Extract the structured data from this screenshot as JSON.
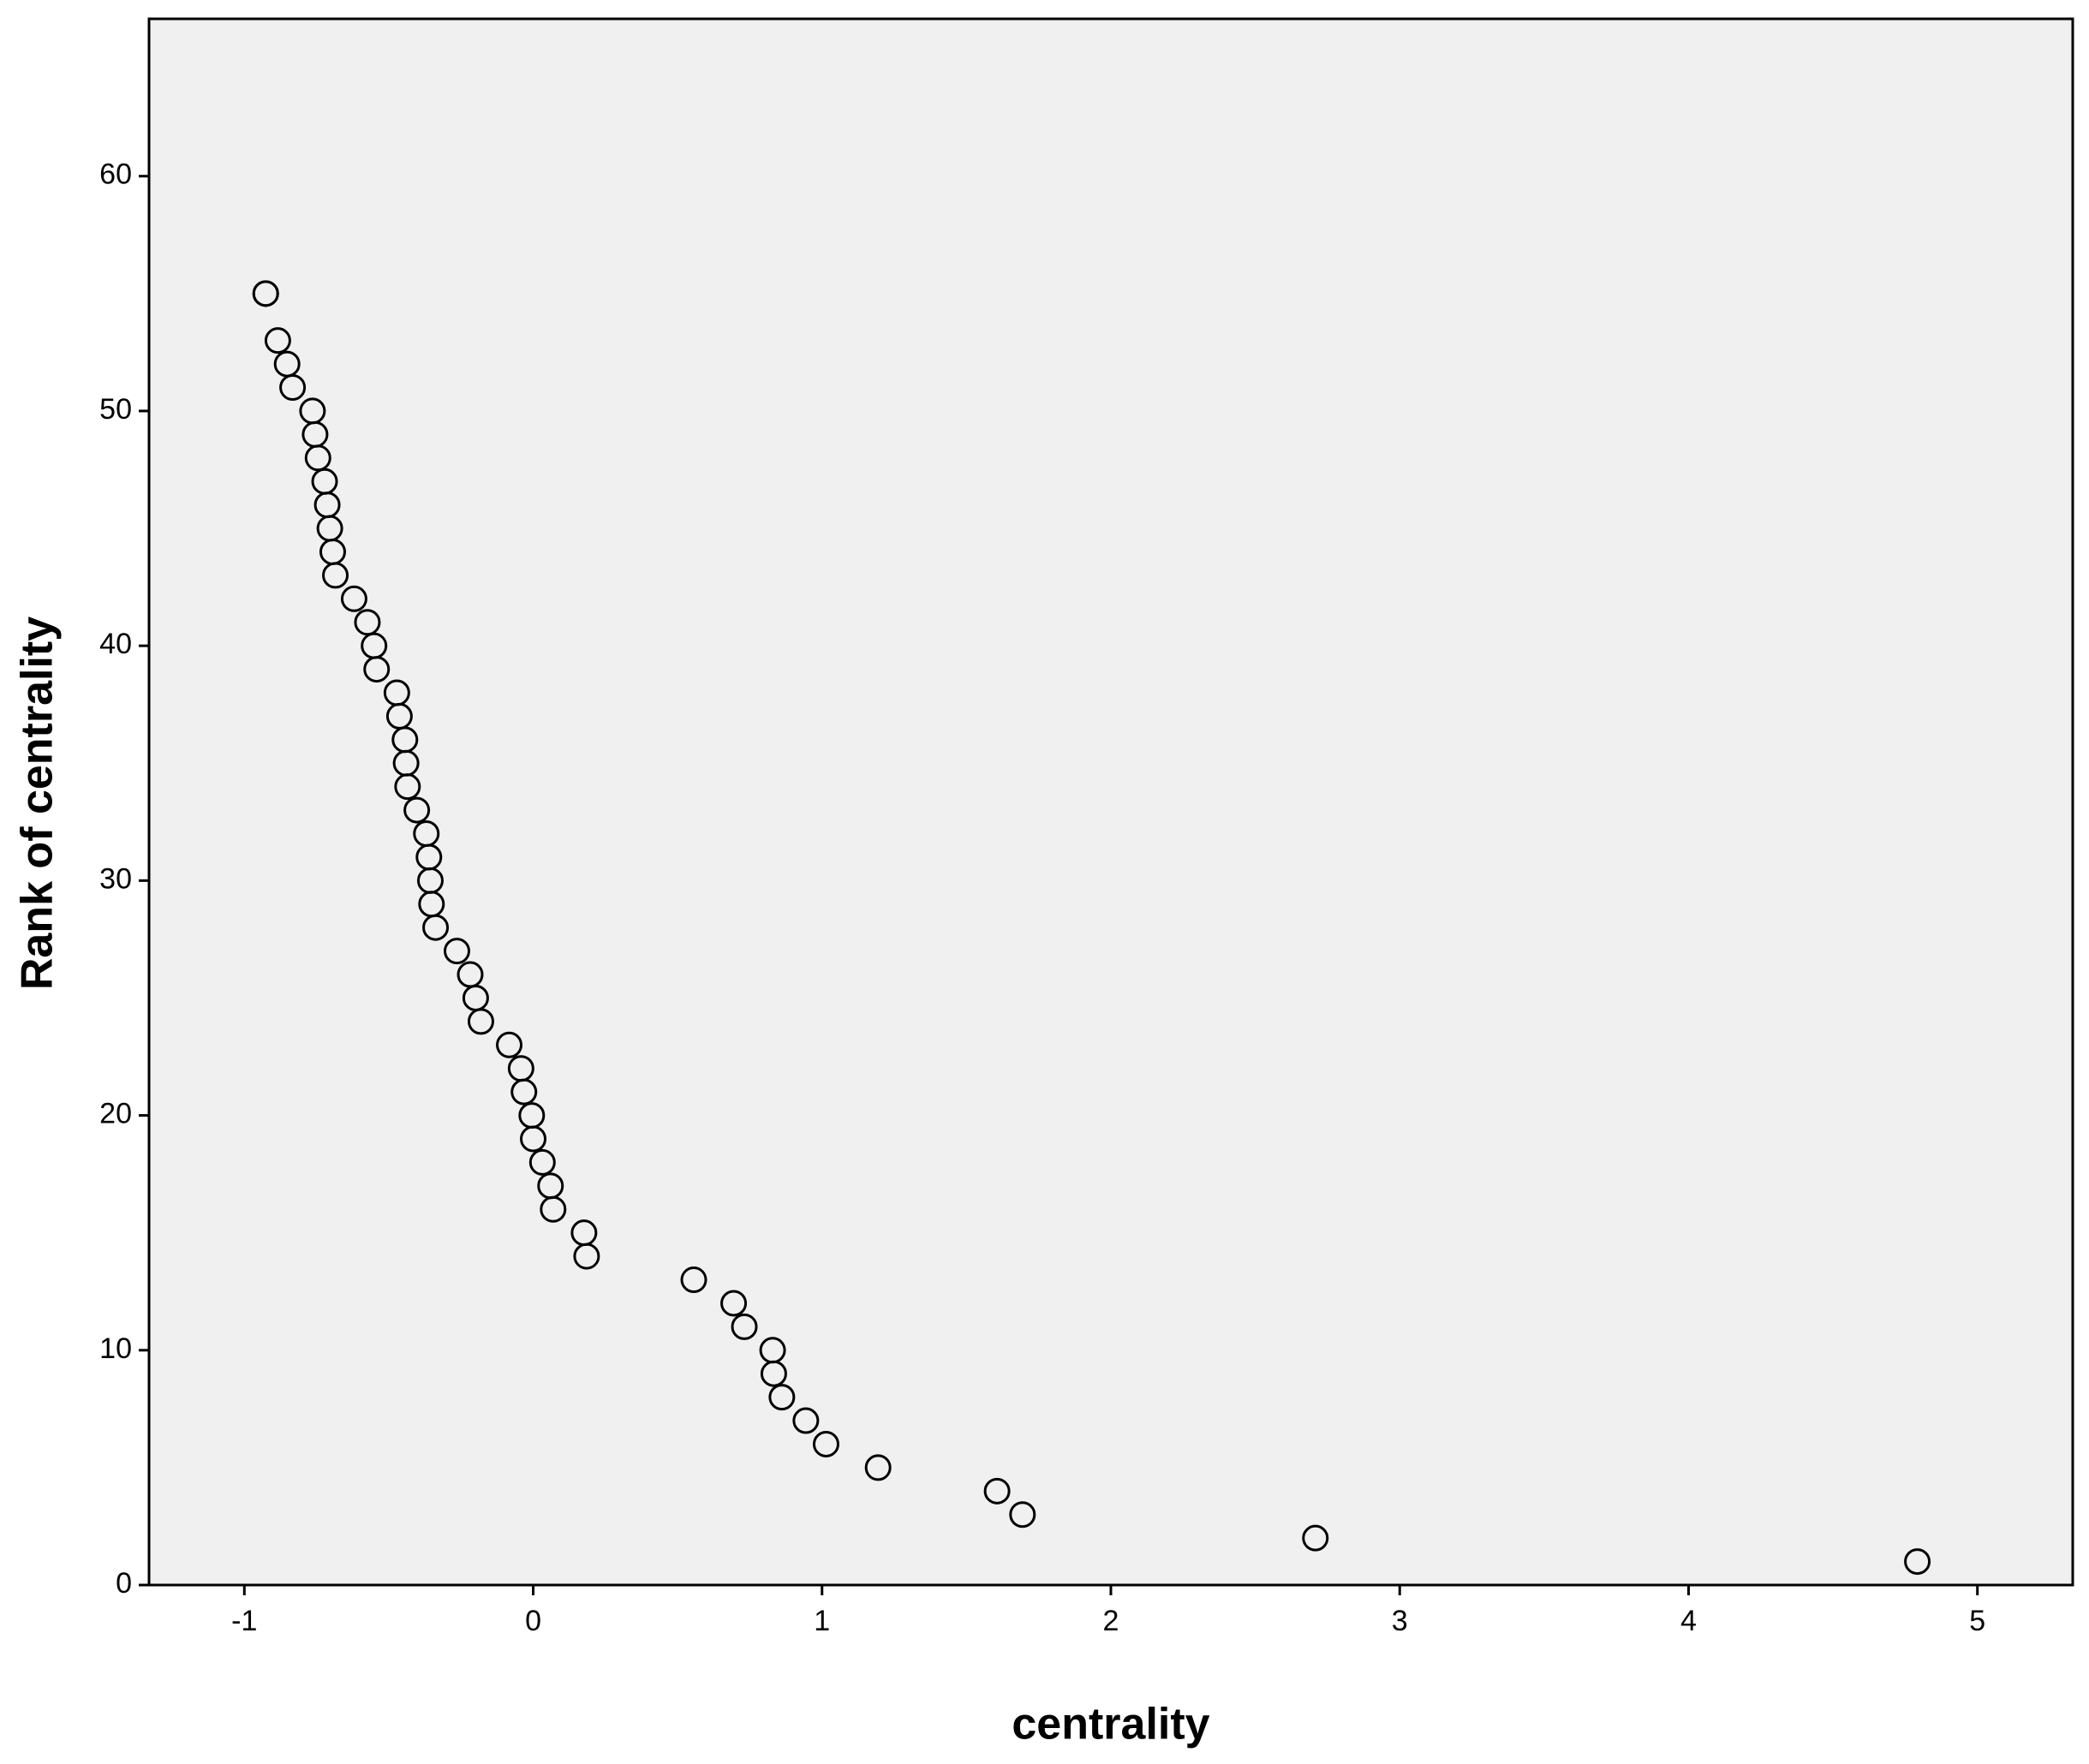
{
  "chart_data": {
    "type": "scatter",
    "x_label": "centrality",
    "y_label": "Rank of centrality",
    "x": [
      -0.926,
      -0.926,
      -0.884,
      -0.852,
      -0.833,
      -0.764,
      -0.755,
      -0.745,
      -0.722,
      -0.713,
      -0.704,
      -0.694,
      -0.685,
      -0.62,
      -0.574,
      -0.551,
      -0.542,
      -0.472,
      -0.463,
      -0.444,
      -0.44,
      -0.435,
      -0.403,
      -0.37,
      -0.361,
      -0.356,
      -0.352,
      -0.338,
      -0.264,
      -0.218,
      -0.199,
      -0.181,
      -0.083,
      -0.042,
      -0.032,
      -0.005,
      0.0,
      0.032,
      0.06,
      0.069,
      0.176,
      0.185,
      0.556,
      0.694,
      0.731,
      0.829,
      0.833,
      0.861,
      0.944,
      1.014,
      1.194,
      1.606,
      1.694,
      2.708,
      4.792
    ],
    "values": [
      55,
      55,
      53,
      52,
      51,
      50,
      49,
      48,
      47,
      46,
      45,
      44,
      43,
      42,
      41,
      40,
      39,
      38,
      37,
      36,
      35,
      34,
      33,
      32,
      31,
      30,
      29,
      28,
      27,
      26,
      25,
      24,
      23,
      22,
      21,
      20,
      19,
      18,
      17,
      16,
      15,
      14,
      13,
      12,
      11,
      10,
      9,
      8,
      7,
      6,
      5,
      4,
      3,
      2,
      1
    ],
    "xlim": [
      -1.33,
      5.33
    ],
    "ylim": [
      0,
      66.7
    ],
    "xticks": [
      -1,
      0,
      1,
      2,
      3,
      4,
      5
    ],
    "yticks": [
      0,
      10,
      20,
      30,
      40,
      50,
      60
    ],
    "background": "#f0f0f0",
    "marker_color": "#000000",
    "grid": false
  }
}
